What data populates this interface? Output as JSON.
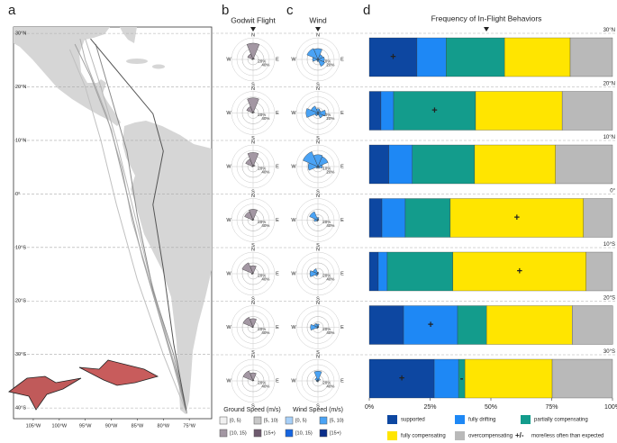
{
  "chart_data": [
    {
      "type": "map",
      "panel": "a",
      "xlim": [
        -108.8,
        -70.7
      ],
      "ylim": [
        -42,
        31.2
      ],
      "xticks": [
        {
          "value": -105,
          "label": "105°W"
        },
        {
          "value": -100,
          "label": "100°W"
        },
        {
          "value": -95,
          "label": "95°W"
        },
        {
          "value": -90,
          "label": "90°W"
        },
        {
          "value": -85,
          "label": "85°W"
        },
        {
          "value": -80,
          "label": "80°W"
        },
        {
          "value": -75,
          "label": "75°W"
        }
      ],
      "yticks": [
        {
          "value": 30,
          "label": "30°N"
        },
        {
          "value": 20,
          "label": "20°N"
        },
        {
          "value": 10,
          "label": "10°N"
        },
        {
          "value": 0,
          "label": "0°"
        },
        {
          "value": -10,
          "label": "10°S"
        },
        {
          "value": -20,
          "label": "20°S"
        },
        {
          "value": -30,
          "label": "30°S"
        },
        {
          "value": -40,
          "label": "40°S"
        }
      ],
      "tracks": [
        {
          "color": "#b0b0b0",
          "x": [
            -96,
            -95,
            -91,
            -88,
            -86,
            -83,
            -80,
            -77,
            -75.5
          ],
          "y": [
            29,
            25,
            15,
            5,
            -5,
            -15,
            -25,
            -35,
            -41
          ]
        },
        {
          "color": "#a0a0a0",
          "x": [
            -97,
            -94,
            -90,
            -87,
            -84,
            -81,
            -78,
            -75.5
          ],
          "y": [
            28,
            22,
            12,
            0,
            -12,
            -22,
            -32,
            -41
          ]
        },
        {
          "color": "#b8b8b8",
          "x": [
            -95,
            -92,
            -89,
            -86,
            -83,
            -79,
            -76,
            -75.5
          ],
          "y": [
            29,
            20,
            10,
            -2,
            -14,
            -28,
            -38,
            -41
          ]
        },
        {
          "color": "#8a8a8a",
          "x": [
            -93,
            -90,
            -87,
            -85,
            -82,
            -78,
            -75.5
          ],
          "y": [
            28,
            18,
            8,
            -4,
            -18,
            -30,
            -41
          ]
        },
        {
          "color": "#555555",
          "x": [
            -94,
            -88,
            -82,
            -80,
            -82,
            -80,
            -78,
            -75.5
          ],
          "y": [
            29,
            22,
            15,
            8,
            -2,
            -14,
            -28,
            -41
          ]
        },
        {
          "color": "#c0c0c0",
          "x": [
            -98,
            -95,
            -92,
            -89,
            -85,
            -80,
            -75.5
          ],
          "y": [
            27,
            20,
            10,
            -2,
            -16,
            -30,
            -41
          ]
        }
      ]
    },
    {
      "type": "rose",
      "panel": "b",
      "title": "Godwit Flight",
      "directions": [
        "N",
        "E",
        "S",
        "W"
      ],
      "legend_title": "Ground Speed (m/s)",
      "legend": [
        {
          "label": "[0, 5)",
          "color": "#f0f0f0"
        },
        {
          "label": "[5, 10)",
          "color": "#c8c8c8"
        },
        {
          "label": "[10, 15)",
          "color": "#a397a3"
        },
        {
          "label": "[15+)",
          "color": "#6e5a6e"
        }
      ],
      "petal_class": 2,
      "roses": [
        {
          "rlim": [
            0,
            80
          ],
          "rticks": [
            {
              "value": 20,
              "label": "20%"
            },
            {
              "value": 40,
              "label": "40%"
            }
          ],
          "values": [
            60,
            6,
            0,
            0,
            0,
            0,
            4,
            22
          ]
        },
        {
          "rlim": [
            0,
            80
          ],
          "rticks": [
            {
              "value": 20,
              "label": "20%"
            },
            {
              "value": 40,
              "label": "40%"
            }
          ],
          "values": [
            56,
            6,
            0,
            0,
            0,
            0,
            4,
            26
          ]
        },
        {
          "rlim": [
            0,
            80
          ],
          "rticks": [
            {
              "value": 20,
              "label": "20%"
            },
            {
              "value": 40,
              "label": "40%"
            }
          ],
          "values": [
            52,
            8,
            0,
            0,
            0,
            0,
            4,
            30
          ]
        },
        {
          "rlim": [
            0,
            80
          ],
          "rticks": [
            {
              "value": 20,
              "label": "20%"
            },
            {
              "value": 40,
              "label": "40%"
            }
          ],
          "values": [
            40,
            4,
            0,
            0,
            0,
            0,
            4,
            34
          ]
        },
        {
          "rlim": [
            0,
            80
          ],
          "rticks": [
            {
              "value": 20,
              "label": "20%"
            },
            {
              "value": 40,
              "label": "40%"
            }
          ],
          "values": [
            30,
            2,
            0,
            0,
            0,
            2,
            6,
            44
          ]
        },
        {
          "rlim": [
            0,
            80
          ],
          "rticks": [
            {
              "value": 20,
              "label": "20%"
            },
            {
              "value": 40,
              "label": "40%"
            }
          ],
          "values": [
            32,
            2,
            0,
            0,
            0,
            0,
            4,
            40
          ]
        },
        {
          "rlim": [
            0,
            80
          ],
          "rticks": [
            {
              "value": 20,
              "label": "20%"
            },
            {
              "value": 40,
              "label": "40%"
            }
          ],
          "values": [
            30,
            4,
            0,
            0,
            0,
            0,
            2,
            40
          ]
        }
      ]
    },
    {
      "type": "rose",
      "panel": "c",
      "title": "Wind",
      "directions": [
        "N",
        "E",
        "S",
        "W"
      ],
      "legend_title": "Wind Speed (m/s)",
      "legend": [
        {
          "label": "[0, 5)",
          "color": "#a8d0f8"
        },
        {
          "label": "[5, 10)",
          "color": "#4aa3f5"
        },
        {
          "label": "[10, 15)",
          "color": "#1565e0"
        },
        {
          "label": "[15+)",
          "color": "#0a2d8a"
        }
      ],
      "petal_class": 1,
      "roses": [
        {
          "rlim": [
            0,
            40
          ],
          "rticks": [
            {
              "value": 10,
              "label": "10%"
            },
            {
              "value": 20,
              "label": "20%"
            }
          ],
          "values": [
            20,
            10,
            12,
            14,
            4,
            3,
            10,
            22
          ]
        },
        {
          "rlim": [
            0,
            40
          ],
          "rticks": [
            {
              "value": 10,
              "label": "10%"
            },
            {
              "value": 20,
              "label": "20%"
            }
          ],
          "values": [
            8,
            6,
            14,
            10,
            4,
            6,
            22,
            14
          ]
        },
        {
          "rlim": [
            0,
            40
          ],
          "rticks": [
            {
              "value": 10,
              "label": "10%"
            },
            {
              "value": 20,
              "label": "20%"
            }
          ],
          "values": [
            22,
            20,
            8,
            4,
            2,
            4,
            18,
            30
          ]
        },
        {
          "rlim": [
            0,
            80
          ],
          "rticks": [
            {
              "value": 20,
              "label": "20%"
            },
            {
              "value": 40,
              "label": "40%"
            }
          ],
          "values": [
            10,
            4,
            2,
            2,
            2,
            6,
            14,
            34
          ]
        },
        {
          "rlim": [
            0,
            80
          ],
          "rticks": [
            {
              "value": 20,
              "label": "20%"
            },
            {
              "value": 40,
              "label": "40%"
            }
          ],
          "values": [
            6,
            2,
            2,
            2,
            2,
            10,
            30,
            20
          ]
        },
        {
          "rlim": [
            0,
            80
          ],
          "rticks": [
            {
              "value": 20,
              "label": "20%"
            },
            {
              "value": 40,
              "label": "40%"
            }
          ],
          "values": [
            12,
            4,
            2,
            2,
            2,
            6,
            28,
            16
          ]
        },
        {
          "rlim": [
            0,
            80
          ],
          "rticks": [
            {
              "value": 20,
              "label": "20%"
            },
            {
              "value": 40,
              "label": "40%"
            }
          ],
          "values": [
            36,
            10,
            2,
            2,
            4,
            4,
            6,
            12
          ]
        }
      ]
    },
    {
      "type": "bar",
      "panel": "d",
      "orientation": "horizontal",
      "stacked": true,
      "title": "Frequency of In-Flight Behaviors",
      "categories": [
        "30°N",
        "20°N",
        "10°N",
        "0°",
        "10°S",
        "20°S",
        "30°S"
      ],
      "series": [
        {
          "name": "supported",
          "color": "#0d47a1",
          "values": [
            19.6,
            4.8,
            8.1,
            5.2,
            3.7,
            14.1,
            26.7
          ]
        },
        {
          "name": "fully drifting",
          "color": "#1e88f5",
          "values": [
            12,
            5.2,
            9.6,
            9.6,
            3.7,
            22.2,
            10
          ]
        },
        {
          "name": "partially compensating",
          "color": "#139c8c",
          "values": [
            24,
            33.7,
            25.6,
            18.5,
            27,
            11.9,
            2.6
          ]
        },
        {
          "name": "fully compensating",
          "color": "#ffe500",
          "values": [
            27,
            35.6,
            33.3,
            54.8,
            54.8,
            35.2,
            35.9
          ]
        },
        {
          "name": "overcompensating",
          "color": "#b9b9b9",
          "values": [
            17.4,
            20.7,
            23.4,
            11.9,
            10.8,
            16.7,
            24.8
          ]
        }
      ],
      "xlim": [
        0,
        100
      ],
      "xticks": [
        {
          "value": 0,
          "label": "0%"
        },
        {
          "value": 25,
          "label": "25%"
        },
        {
          "value": 50,
          "label": "50%"
        },
        {
          "value": 75,
          "label": "75%"
        },
        {
          "value": 100,
          "label": "100%"
        }
      ],
      "annotations": [
        {
          "category": 0,
          "series": 0,
          "label": "+"
        },
        {
          "category": 1,
          "series": 2,
          "label": "+"
        },
        {
          "category": 3,
          "series": 3,
          "label": "+"
        },
        {
          "category": 4,
          "series": 3,
          "label": "+"
        },
        {
          "category": 5,
          "series": 1,
          "label": "+"
        },
        {
          "category": 6,
          "series": 0,
          "label": "+"
        },
        {
          "category": 6,
          "series": 2,
          "label": "-"
        }
      ],
      "annotation_legend": {
        "symbol": "+/-",
        "label": "more/less often than expected"
      }
    }
  ]
}
